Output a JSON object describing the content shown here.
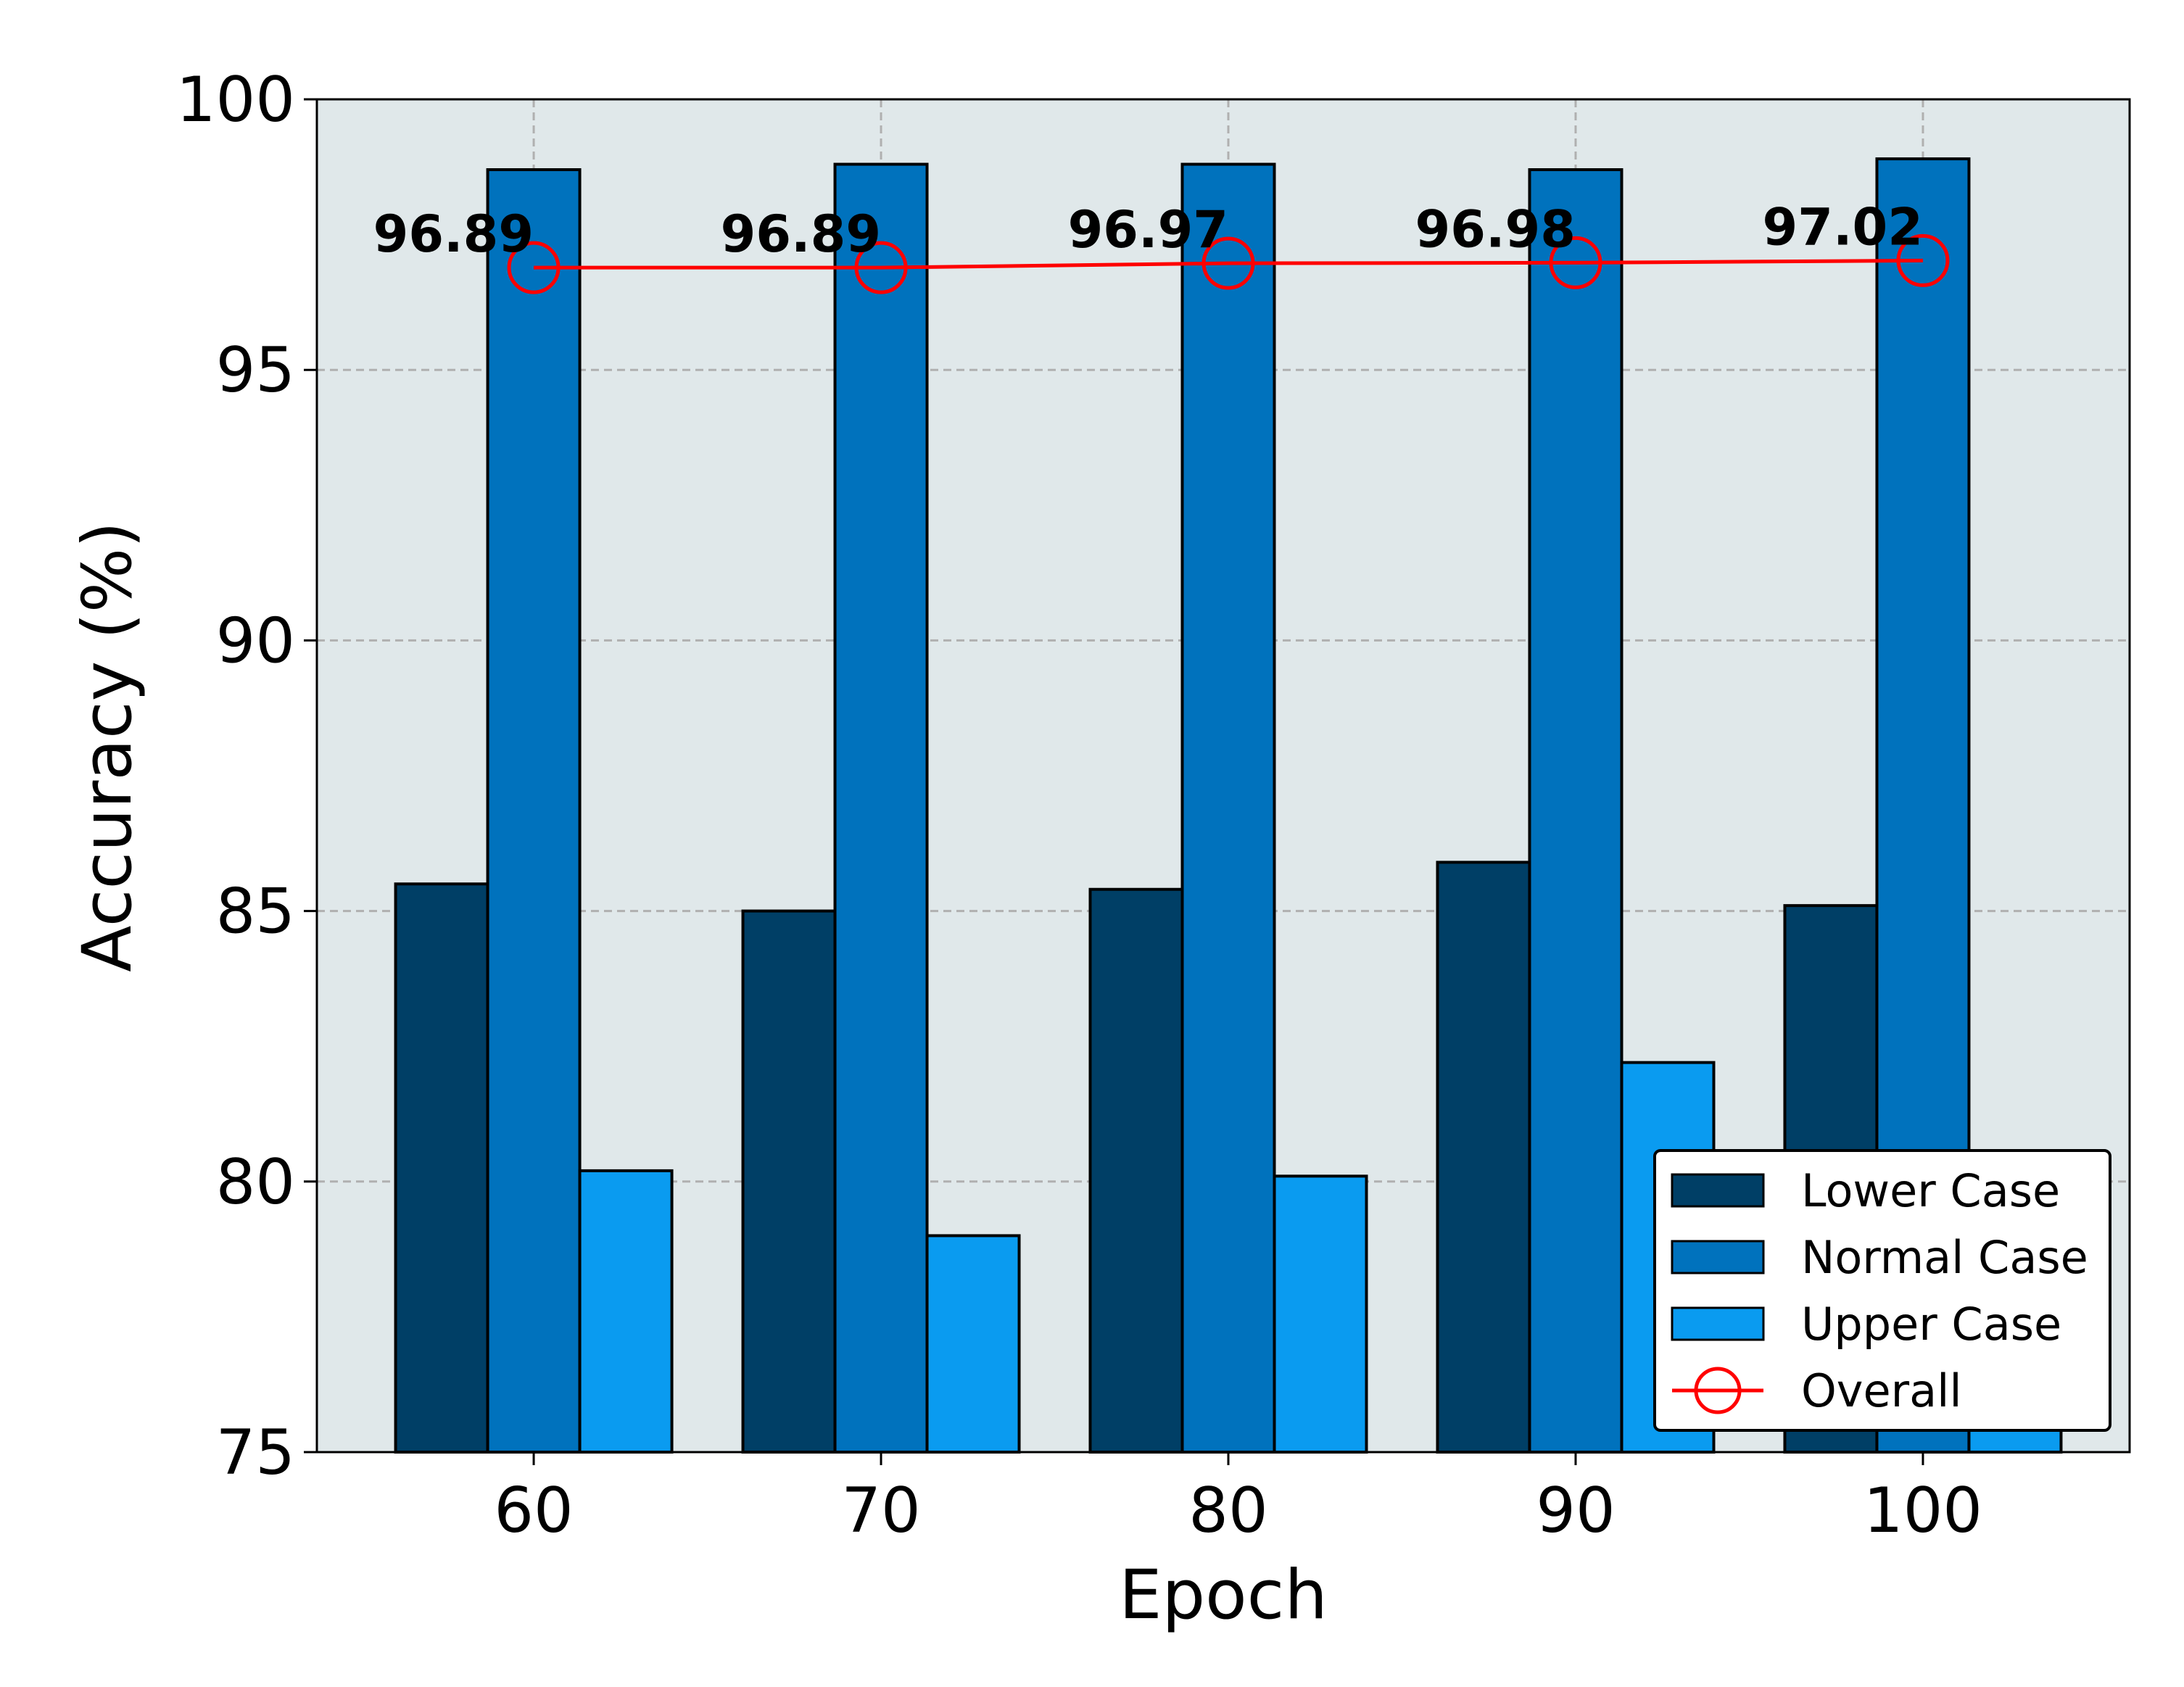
{
  "chart_data": {
    "type": "bar",
    "xlabel": "Epoch",
    "ylabel": "Accuracy (%)",
    "ylim": [
      75,
      100
    ],
    "yticks": [
      "75",
      "80",
      "85",
      "90",
      "95",
      "100"
    ],
    "categories": [
      "60",
      "70",
      "80",
      "90",
      "100"
    ],
    "grid": true,
    "legend_position": "bottom-right",
    "plot_background": "#e0e8ea",
    "series": [
      {
        "name": "Lower Case",
        "type": "bar",
        "color": "#003f66",
        "values": [
          85.5,
          85.0,
          85.4,
          85.9,
          85.1
        ]
      },
      {
        "name": "Normal Case",
        "type": "bar",
        "color": "#0072bd",
        "values": [
          98.7,
          98.8,
          98.8,
          98.7,
          98.9
        ]
      },
      {
        "name": "Upper Case",
        "type": "bar",
        "color": "#0a9bf0",
        "values": [
          80.2,
          79.0,
          80.1,
          82.2,
          79.9
        ]
      },
      {
        "name": "Overall",
        "type": "line",
        "color": "#ff0000",
        "marker": "open-circle",
        "values": [
          96.89,
          96.89,
          96.97,
          96.98,
          97.02
        ],
        "labels": [
          "96.89",
          "96.89",
          "96.97",
          "96.98",
          "97.02"
        ]
      }
    ]
  }
}
